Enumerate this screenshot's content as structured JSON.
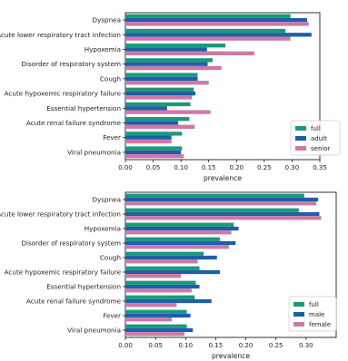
{
  "chart_data": [
    {
      "type": "bar",
      "orientation": "horizontal",
      "categories": [
        "Dyspnea",
        "Acute lower respiratory tract infection",
        "Hypoxemia",
        "Disorder of respiratory system",
        "Cough",
        "Acute hypoxemic respiratory failure",
        "Essential hypertension",
        "Acute renal failure syndrome",
        "Fever",
        "Viral pneumonia"
      ],
      "series": [
        {
          "name": "full",
          "color": "#1a9a7a",
          "values": [
            0.297,
            0.288,
            0.18,
            0.157,
            0.13,
            0.123,
            0.117,
            0.115,
            0.102,
            0.102
          ]
        },
        {
          "name": "adult",
          "color": "#1f5fa8",
          "values": [
            0.327,
            0.335,
            0.147,
            0.148,
            0.13,
            0.126,
            0.075,
            0.095,
            0.083,
            0.1
          ]
        },
        {
          "name": "senior",
          "color": "#cc79a7",
          "values": [
            0.33,
            0.297,
            0.232,
            0.173,
            0.15,
            0.12,
            0.153,
            0.125,
            0.083,
            0.105
          ]
        }
      ],
      "xlabel": "prevalence",
      "xlim": [
        0,
        0.35
      ],
      "xticks": [
        "0.00",
        "0.05",
        "0.10",
        "0.15",
        "0.20",
        "0.25",
        "0.30",
        "0.35"
      ],
      "legend_position": "bottom-right"
    },
    {
      "type": "bar",
      "orientation": "horizontal",
      "categories": [
        "Dyspnea",
        "Acute lower respiratory tract infection",
        "Hypoxemia",
        "Disorder of respiratory system",
        "Cough",
        "Acute hypoxemic respiratory failure",
        "Essential hypertension",
        "Acute renal failure syndrome",
        "Fever",
        "Viral pneumonia"
      ],
      "series": [
        {
          "name": "full",
          "color": "#1a9a7a",
          "values": [
            0.297,
            0.288,
            0.18,
            0.157,
            0.13,
            0.123,
            0.117,
            0.115,
            0.102,
            0.102
          ]
        },
        {
          "name": "male",
          "color": "#1f5fa8",
          "values": [
            0.32,
            0.322,
            0.188,
            0.183,
            0.152,
            0.157,
            0.123,
            0.143,
            0.108,
            0.112
          ]
        },
        {
          "name": "female",
          "color": "#cc79a7",
          "values": [
            0.317,
            0.325,
            0.176,
            0.172,
            0.12,
            0.092,
            0.11,
            0.085,
            0.077,
            0.098
          ]
        }
      ],
      "xlabel": "prevalence",
      "xlim": [
        0,
        0.35
      ],
      "xticks": [
        "0.00",
        "0.05",
        "0.10",
        "0.15",
        "0.20",
        "0.25",
        "0.30"
      ],
      "legend_position": "bottom-right"
    }
  ]
}
